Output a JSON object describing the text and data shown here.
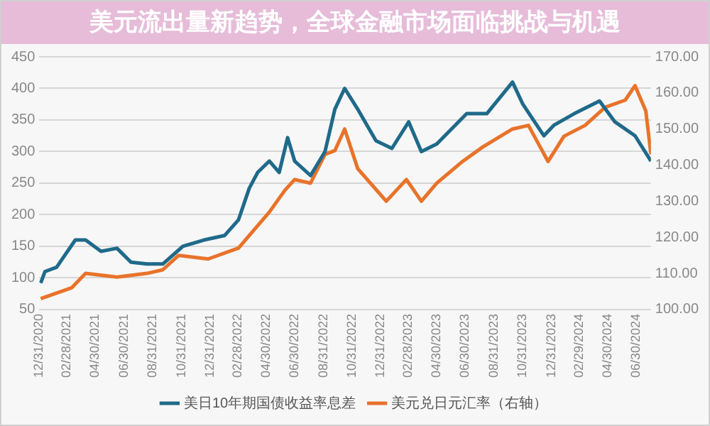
{
  "chart_data": {
    "type": "line",
    "title": "美元流出量新趋势，全球金融市场面临挑战与机遇",
    "series": [
      {
        "name": "美日10年期国债收益率息差",
        "color": "#1f6a8a",
        "x": [
          "2021-01-03",
          "2021-01-12",
          "2021-02-06",
          "2021-03-18",
          "2021-04-09",
          "2021-05-12",
          "2021-06-15",
          "2021-07-15",
          "2021-08-18",
          "2021-09-21",
          "2021-11-03",
          "2021-12-18",
          "2022-01-31",
          "2022-03-02",
          "2022-03-25",
          "2022-04-12",
          "2022-05-07",
          "2022-05-28",
          "2022-06-15",
          "2022-06-30",
          "2022-08-03",
          "2022-09-03",
          "2022-09-24",
          "2022-10-15",
          "2022-11-12",
          "2022-12-21",
          "2023-01-24",
          "2023-03-01",
          "2023-03-28",
          "2023-04-30",
          "2023-07-03",
          "2023-08-15",
          "2023-10-09",
          "2023-10-31",
          "2023-12-15",
          "2024-01-06",
          "2024-02-18",
          "2024-04-12",
          "2024-05-15",
          "2024-06-27",
          "2024-07-31"
        ],
        "values": [
          92,
          110,
          117,
          160,
          160,
          142,
          147,
          125,
          122,
          122,
          150,
          160,
          167,
          192,
          242,
          267,
          285,
          267,
          322,
          285,
          262,
          300,
          367,
          400,
          367,
          317,
          305,
          347,
          300,
          312,
          360,
          360,
          410,
          375,
          325,
          342,
          360,
          380,
          347,
          325,
          285
        ]
      },
      {
        "name": "美元兑日元汇率（右轴）",
        "color": "#e8732a",
        "axis": "y2",
        "x": [
          "2021-01-03",
          "2021-03-10",
          "2021-04-09",
          "2021-06-15",
          "2021-08-18",
          "2021-09-21",
          "2021-10-25",
          "2021-12-27",
          "2022-03-02",
          "2022-05-07",
          "2022-06-09",
          "2022-06-30",
          "2022-08-03",
          "2022-09-03",
          "2022-09-24",
          "2022-10-15",
          "2022-11-12",
          "2023-01-12",
          "2023-02-24",
          "2023-03-28",
          "2023-04-30",
          "2023-06-24",
          "2023-08-06",
          "2023-10-09",
          "2023-11-12",
          "2023-12-24",
          "2024-01-27",
          "2024-03-12",
          "2024-04-24",
          "2024-06-06",
          "2024-06-27",
          "2024-07-20",
          "2024-07-31"
        ],
        "values": [
          103,
          106,
          110,
          109,
          110,
          111,
          115,
          114,
          117,
          127,
          133,
          136,
          135,
          143,
          144,
          150,
          139,
          130,
          136,
          130,
          135,
          141,
          145,
          150,
          151,
          141,
          148,
          151,
          156,
          158,
          162,
          155,
          143
        ]
      }
    ],
    "xlim": [
      "2020-12-31",
      "2024-07-31"
    ],
    "xticks": [
      {
        "value": "2020-12-31",
        "label": "12/31/2020"
      },
      {
        "value": "2021-02-28",
        "label": "02/28/2021"
      },
      {
        "value": "2021-04-30",
        "label": "04/30/2021"
      },
      {
        "value": "2021-06-30",
        "label": "06/30/2021"
      },
      {
        "value": "2021-08-31",
        "label": "08/31/2021"
      },
      {
        "value": "2021-10-31",
        "label": "10/31/2021"
      },
      {
        "value": "2021-12-31",
        "label": "12/31/2021"
      },
      {
        "value": "2022-02-28",
        "label": "02/28/2022"
      },
      {
        "value": "2022-04-30",
        "label": "04/30/2022"
      },
      {
        "value": "2022-06-30",
        "label": "06/30/2022"
      },
      {
        "value": "2022-08-31",
        "label": "08/31/2022"
      },
      {
        "value": "2022-10-31",
        "label": "10/31/2022"
      },
      {
        "value": "2022-12-31",
        "label": "12/31/2022"
      },
      {
        "value": "2023-02-28",
        "label": "02/28/2023"
      },
      {
        "value": "2023-04-30",
        "label": "04/30/2023"
      },
      {
        "value": "2023-06-30",
        "label": "06/30/2023"
      },
      {
        "value": "2023-08-31",
        "label": "08/31/2023"
      },
      {
        "value": "2023-10-31",
        "label": "10/31/2023"
      },
      {
        "value": "2023-12-31",
        "label": "12/31/2023"
      },
      {
        "value": "2024-02-29",
        "label": "02/29/2024"
      },
      {
        "value": "2024-04-30",
        "label": "04/30/2024"
      },
      {
        "value": "2024-06-30",
        "label": "06/30/2024"
      }
    ],
    "ylim": [
      50,
      450
    ],
    "yticks": [
      50,
      100,
      150,
      200,
      250,
      300,
      350,
      400,
      450
    ],
    "y2lim": [
      100,
      170
    ],
    "y2ticks": [
      {
        "value": 100,
        "label": "100.00"
      },
      {
        "value": 110,
        "label": "110.00"
      },
      {
        "value": 120,
        "label": "120.00"
      },
      {
        "value": 130,
        "label": "130.00"
      },
      {
        "value": 140,
        "label": "140.00"
      },
      {
        "value": 150,
        "label": "150.00"
      },
      {
        "value": 160,
        "label": "160.00"
      },
      {
        "value": 170,
        "label": "170.00"
      }
    ],
    "grid": "y",
    "legend": "bottom",
    "marker": "none",
    "line_style": "solid"
  }
}
